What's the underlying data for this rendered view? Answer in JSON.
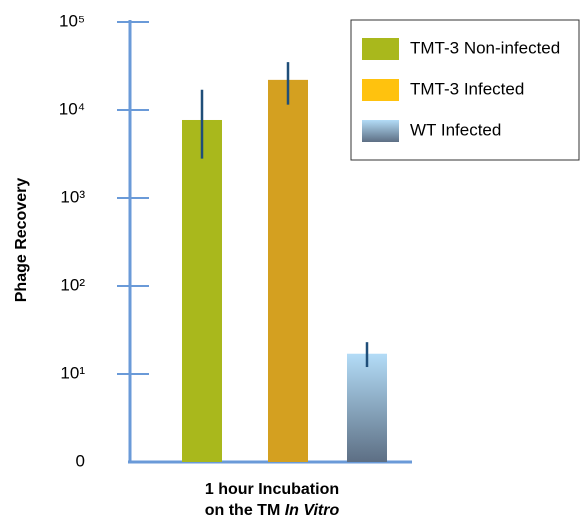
{
  "chart_data": {
    "type": "bar",
    "ylabel": "Phage Recovery",
    "xlabel": {
      "line1": "1 hour Incubation",
      "line2": "on the TM",
      "line2_italic": "In Vitro"
    },
    "log_y": true,
    "ylim": [
      1,
      100000
    ],
    "yticks": [
      {
        "value": 1,
        "label": "0"
      },
      {
        "value": 10,
        "label": "10¹"
      },
      {
        "value": 100,
        "label": "10²"
      },
      {
        "value": 1000,
        "label": "10³"
      },
      {
        "value": 10000,
        "label": "10⁴"
      },
      {
        "value": 100000,
        "label": "10⁵"
      }
    ],
    "legend": "upper right",
    "series": [
      {
        "name": "TMT-3 Non-infected",
        "color": "#a9b81c",
        "bar_color": "#a9b81c",
        "values": [
          7700
        ],
        "err_low": [
          2800
        ],
        "err_high": [
          17000
        ]
      },
      {
        "name": "TMT-3 Infected",
        "color": "#ffc20e",
        "bar_color": "#d4a020",
        "values": [
          22000
        ],
        "err_low": [
          11500
        ],
        "err_high": [
          35000
        ]
      },
      {
        "name": "WT Infected",
        "color": "#b3dcf7",
        "color2": "#5d6f84",
        "bar_color": "#b3dcf7",
        "values": [
          17
        ],
        "err_low": [
          12
        ],
        "err_high": [
          23
        ]
      }
    ]
  }
}
